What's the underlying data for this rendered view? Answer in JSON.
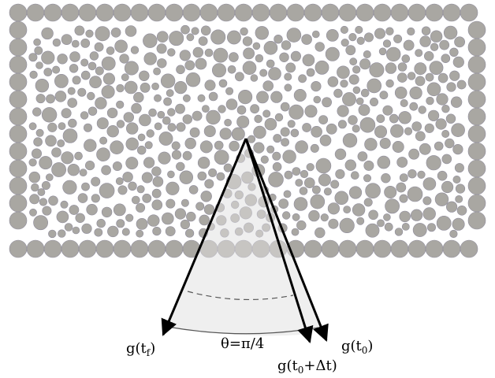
{
  "figure": {
    "colors": {
      "particle_fill": "#a9a7a2",
      "particle_stroke": "#8f8c9c",
      "cone_fill": "#e6e6e6",
      "arrow": "#000000"
    },
    "arc_label": "θ=π/4",
    "labels": {
      "g_tf": {
        "main": "g(t",
        "sub": "f",
        "tail": ")"
      },
      "g_t0_dt": {
        "main": "g(t",
        "sub": "0",
        "tail": "+Δt)"
      },
      "g_t0": {
        "main": "g(t",
        "sub": "0",
        "tail": ")"
      }
    }
  }
}
